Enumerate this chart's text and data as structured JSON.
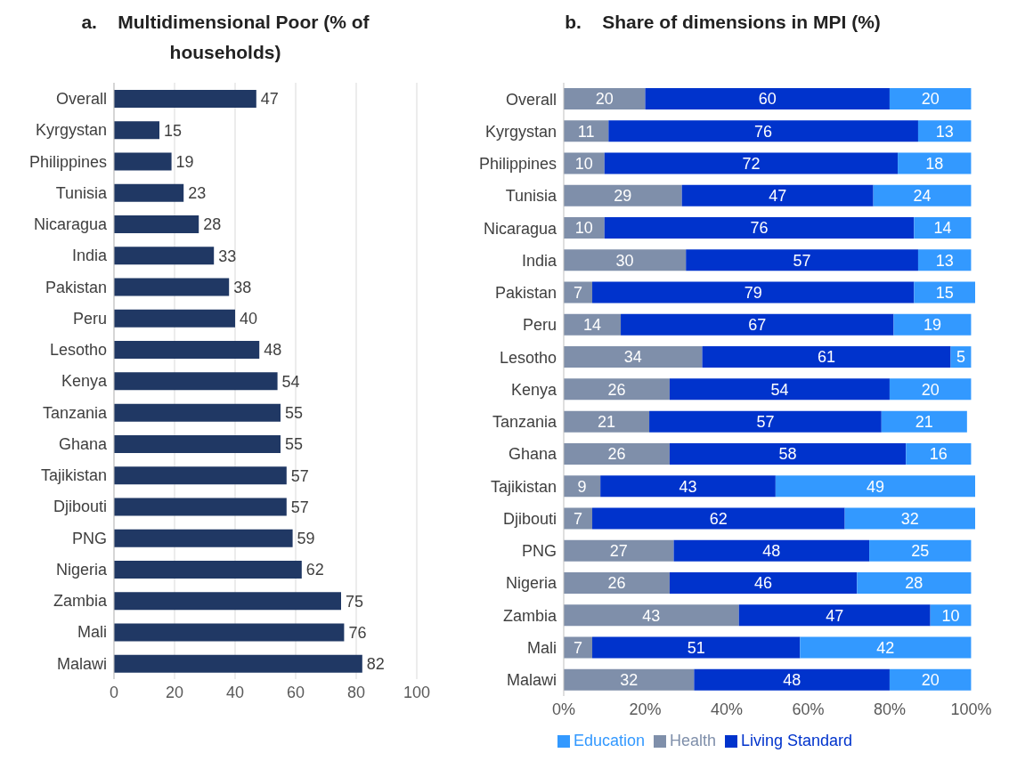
{
  "chart_data": [
    {
      "type": "bar",
      "orientation": "horizontal",
      "title": "a.    Multidimensional Poor (% of households)",
      "categories": [
        "Overall",
        "Kyrgystan",
        "Philippines",
        "Tunisia",
        "Nicaragua",
        "India",
        "Pakistan",
        "Peru",
        "Lesotho",
        "Kenya",
        "Tanzania",
        "Ghana",
        "Tajikistan",
        "Djibouti",
        "PNG",
        "Nigeria",
        "Zambia",
        "Mali",
        "Malawi"
      ],
      "values": [
        47,
        15,
        19,
        23,
        28,
        33,
        38,
        40,
        48,
        54,
        55,
        55,
        57,
        57,
        59,
        62,
        75,
        76,
        82
      ],
      "color": "#203864",
      "xlim": [
        0,
        100
      ],
      "xticks": [
        0,
        20,
        40,
        60,
        80,
        100
      ],
      "grid": "x",
      "data_labels": true
    },
    {
      "type": "bar",
      "orientation": "horizontal",
      "stacked": true,
      "title": "b.    Share of dimensions in MPI (%)",
      "categories": [
        "Overall",
        "Kyrgystan",
        "Philippines",
        "Tunisia",
        "Nicaragua",
        "India",
        "Pakistan",
        "Peru",
        "Lesotho",
        "Kenya",
        "Tanzania",
        "Ghana",
        "Tajikistan",
        "Djibouti",
        "PNG",
        "Nigeria",
        "Zambia",
        "Mali",
        "Malawi"
      ],
      "series": [
        {
          "name": "Health",
          "color": "#7f8faa",
          "values": [
            20,
            11,
            10,
            29,
            10,
            30,
            7,
            14,
            34,
            26,
            21,
            26,
            9,
            7,
            27,
            26,
            43,
            7,
            32
          ]
        },
        {
          "name": "Living Standard",
          "color": "#0033cc",
          "values": [
            60,
            76,
            72,
            47,
            76,
            57,
            79,
            67,
            61,
            54,
            57,
            58,
            43,
            62,
            48,
            46,
            47,
            51,
            48
          ]
        },
        {
          "name": "Education",
          "color": "#3399ff",
          "values": [
            20,
            13,
            18,
            24,
            14,
            13,
            15,
            19,
            5,
            20,
            21,
            16,
            49,
            32,
            25,
            28,
            10,
            42,
            20
          ]
        }
      ],
      "xlim": [
        0,
        101
      ],
      "xticks": [
        {
          "value": 0,
          "label": "0%"
        },
        {
          "value": 20,
          "label": "20%"
        },
        {
          "value": 40,
          "label": "40%"
        },
        {
          "value": 60,
          "label": "60%"
        },
        {
          "value": 80,
          "label": "80%"
        },
        {
          "value": 100,
          "label": "100%"
        }
      ],
      "grid": false,
      "data_labels": true,
      "legend": "bottom"
    }
  ]
}
